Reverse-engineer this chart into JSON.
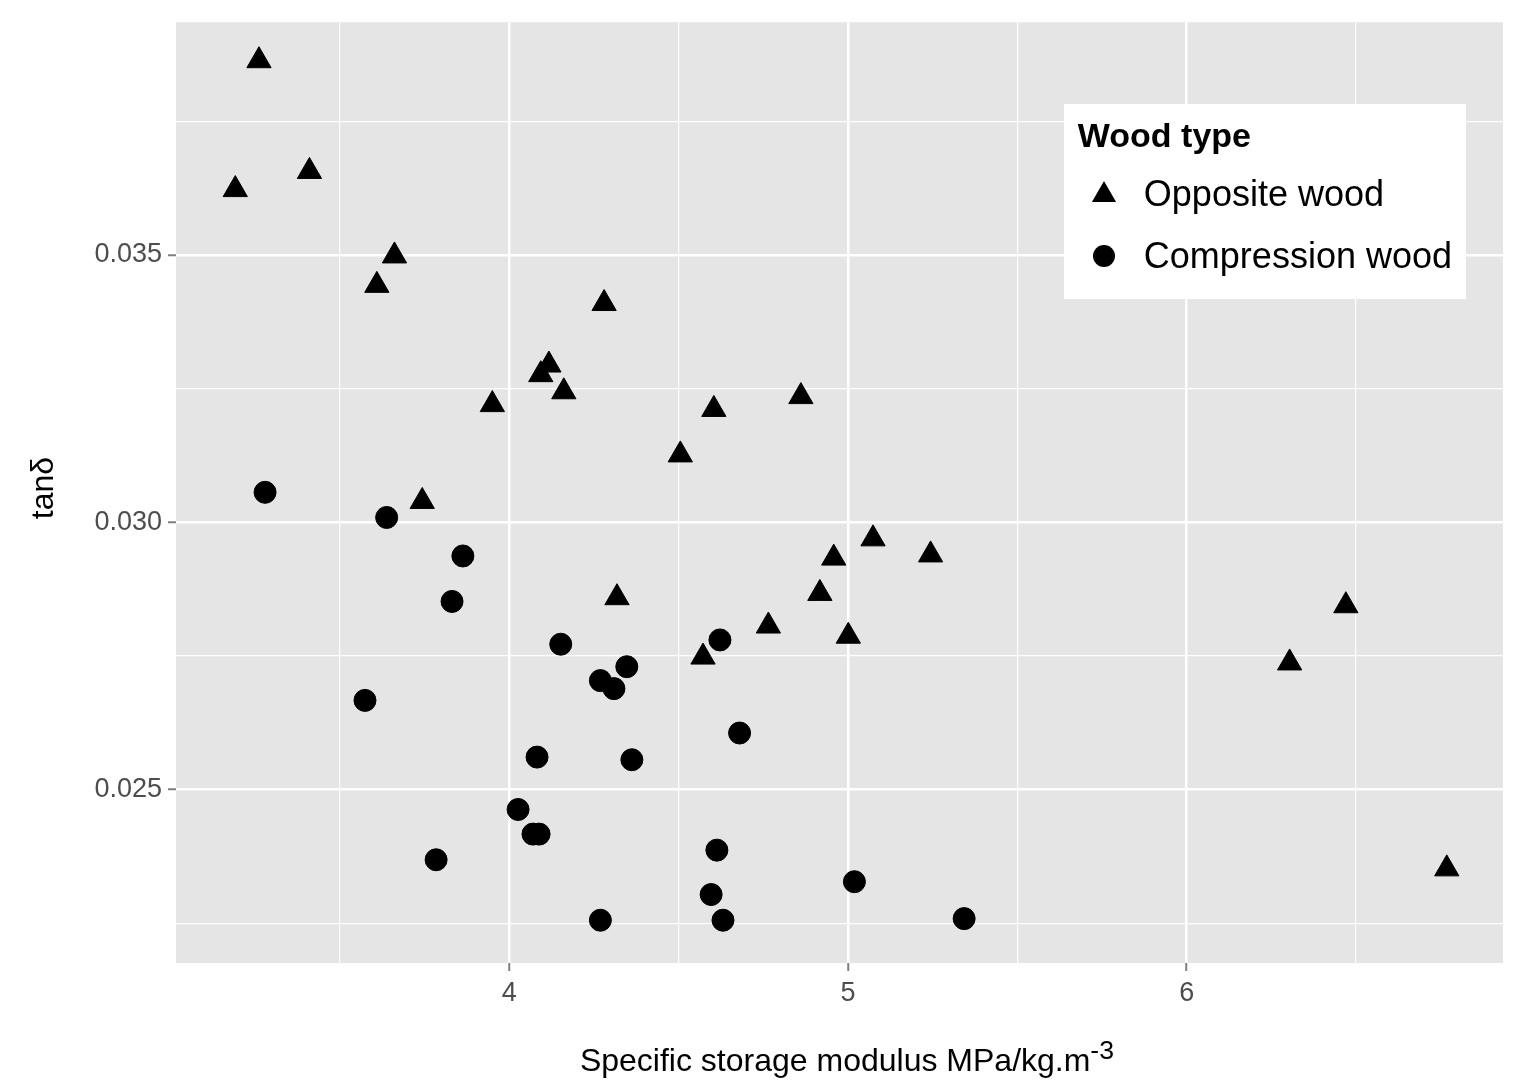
{
  "chart_data": {
    "type": "scatter",
    "xlabel": "Specific storage modulus MPa/kg.m$^{-3}$",
    "ylabel": "tanδ",
    "legend_title": "Wood type",
    "legend": "top right",
    "grid": true,
    "xlim": [
      3.016,
      6.934
    ],
    "ylim": [
      0.02176,
      0.03935
    ],
    "xticks": [
      {
        "value": 3.5,
        "label": null
      },
      4,
      {
        "value": 4.5,
        "label": null
      },
      5,
      {
        "value": 5.5,
        "label": null
      },
      6,
      {
        "value": 6.5,
        "label": null
      }
    ],
    "yticks": [
      {
        "value": 0.0225,
        "label": null
      },
      {
        "value": 0.025,
        "label": "0.025"
      },
      {
        "value": 0.0275,
        "label": null
      },
      {
        "value": 0.03,
        "label": "0.030"
      },
      {
        "value": 0.0325,
        "label": null
      },
      {
        "value": 0.035,
        "label": "0.035"
      },
      {
        "value": 0.0375,
        "label": null
      }
    ],
    "series": [
      {
        "name": "Opposite wood",
        "color": "#000000",
        "marker": "triangle",
        "x": [
          3.261,
          3.191,
          3.41,
          3.661,
          3.609,
          4.28,
          4.117,
          4.093,
          4.161,
          3.95,
          4.604,
          4.861,
          4.505,
          3.743,
          5.074,
          4.958,
          5.244,
          4.318,
          4.917,
          4.765,
          5.001,
          4.572,
          6.304,
          6.47,
          6.768
        ],
        "values": [
          0.03863,
          0.03622,
          0.03656,
          0.03498,
          0.03443,
          0.03409,
          0.03294,
          0.03276,
          0.03244,
          0.0322,
          0.03211,
          0.03235,
          0.03126,
          0.03039,
          0.02969,
          0.02933,
          0.02939,
          0.02859,
          0.02867,
          0.02806,
          0.02787,
          0.02748,
          0.02737,
          0.02844,
          0.02352
        ]
      },
      {
        "name": "Compression wood",
        "color": "#000000",
        "marker": "circle",
        "x": [
          3.279,
          3.638,
          3.863,
          3.831,
          4.152,
          4.622,
          3.574,
          4.269,
          4.309,
          4.347,
          4.68,
          4.082,
          4.362,
          4.026,
          4.07,
          4.088,
          3.784,
          4.613,
          4.596,
          5.019,
          4.269,
          4.631,
          5.343
        ],
        "values": [
          0.03056,
          0.03009,
          0.02937,
          0.02852,
          0.02772,
          0.0278,
          0.02667,
          0.02704,
          0.02689,
          0.0273,
          0.02606,
          0.02561,
          0.02556,
          0.02463,
          0.02417,
          0.02417,
          0.02369,
          0.02387,
          0.02304,
          0.02328,
          0.02256,
          0.02256,
          0.02259
        ]
      }
    ]
  }
}
